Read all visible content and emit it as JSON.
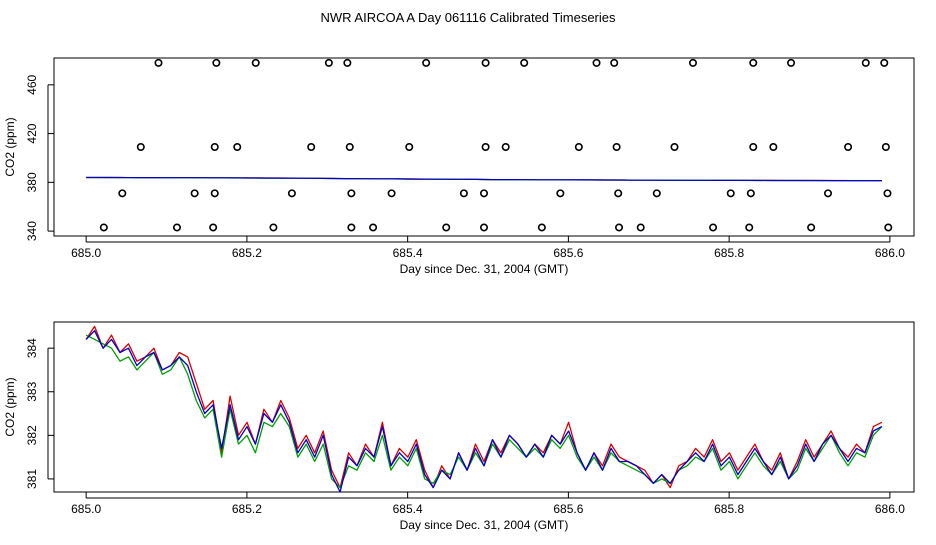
{
  "page_title": "NWR AIRCOA A  Day 061116  Calibrated Timeseries",
  "chart_data": [
    {
      "type": "scatter",
      "title": "",
      "xlabel": "Day since Dec. 31, 2004 (GMT)",
      "ylabel": "CO2 (ppm)",
      "xlim": [
        684.96,
        686.03
      ],
      "ylim": [
        336,
        482
      ],
      "x_ticks": [
        685.0,
        685.2,
        685.4,
        685.6,
        685.8,
        686.0
      ],
      "x_tick_labels": [
        "685.0",
        "685.2",
        "685.4",
        "685.6",
        "685.8",
        "686.0"
      ],
      "y_ticks": [
        340,
        380,
        420,
        460
      ],
      "y_tick_labels": [
        "340",
        "380",
        "420",
        "460"
      ],
      "grid": false,
      "points": [
        {
          "x": 685.09,
          "y": 478
        },
        {
          "x": 685.162,
          "y": 478
        },
        {
          "x": 685.211,
          "y": 478
        },
        {
          "x": 685.302,
          "y": 478
        },
        {
          "x": 685.325,
          "y": 478
        },
        {
          "x": 685.423,
          "y": 478
        },
        {
          "x": 685.497,
          "y": 478
        },
        {
          "x": 685.545,
          "y": 478
        },
        {
          "x": 685.635,
          "y": 478
        },
        {
          "x": 685.657,
          "y": 478
        },
        {
          "x": 685.755,
          "y": 478
        },
        {
          "x": 685.83,
          "y": 478
        },
        {
          "x": 685.877,
          "y": 478
        },
        {
          "x": 685.97,
          "y": 478
        },
        {
          "x": 685.993,
          "y": 478
        },
        {
          "x": 685.068,
          "y": 409
        },
        {
          "x": 685.16,
          "y": 409
        },
        {
          "x": 685.188,
          "y": 409
        },
        {
          "x": 685.28,
          "y": 409
        },
        {
          "x": 685.328,
          "y": 409
        },
        {
          "x": 685.402,
          "y": 409
        },
        {
          "x": 685.497,
          "y": 409
        },
        {
          "x": 685.522,
          "y": 409
        },
        {
          "x": 685.613,
          "y": 409
        },
        {
          "x": 685.66,
          "y": 409
        },
        {
          "x": 685.732,
          "y": 409
        },
        {
          "x": 685.83,
          "y": 409
        },
        {
          "x": 685.855,
          "y": 409
        },
        {
          "x": 685.948,
          "y": 409
        },
        {
          "x": 685.995,
          "y": 409
        },
        {
          "x": 685.045,
          "y": 371
        },
        {
          "x": 685.135,
          "y": 371
        },
        {
          "x": 685.16,
          "y": 371
        },
        {
          "x": 685.256,
          "y": 371
        },
        {
          "x": 685.33,
          "y": 371
        },
        {
          "x": 685.38,
          "y": 371
        },
        {
          "x": 685.47,
          "y": 371
        },
        {
          "x": 685.495,
          "y": 371
        },
        {
          "x": 685.59,
          "y": 371
        },
        {
          "x": 685.662,
          "y": 371
        },
        {
          "x": 685.71,
          "y": 371
        },
        {
          "x": 685.802,
          "y": 371
        },
        {
          "x": 685.827,
          "y": 371
        },
        {
          "x": 685.923,
          "y": 371
        },
        {
          "x": 685.997,
          "y": 371
        },
        {
          "x": 685.022,
          "y": 343
        },
        {
          "x": 685.113,
          "y": 343
        },
        {
          "x": 685.158,
          "y": 343
        },
        {
          "x": 685.233,
          "y": 343
        },
        {
          "x": 685.33,
          "y": 343
        },
        {
          "x": 685.357,
          "y": 343
        },
        {
          "x": 685.448,
          "y": 343
        },
        {
          "x": 685.495,
          "y": 343
        },
        {
          "x": 685.567,
          "y": 343
        },
        {
          "x": 685.663,
          "y": 343
        },
        {
          "x": 685.69,
          "y": 343
        },
        {
          "x": 685.78,
          "y": 343
        },
        {
          "x": 685.825,
          "y": 343
        },
        {
          "x": 685.902,
          "y": 343
        },
        {
          "x": 685.998,
          "y": 343
        }
      ],
      "series": [
        {
          "color": "#dd0000",
          "x_start": 685.0,
          "x_end": 685.99,
          "values": [
            384,
            384,
            384,
            383.9,
            383.9,
            383.8,
            383.9,
            383.8,
            383.8,
            383.7,
            383.7,
            383.6,
            383.6,
            383.5,
            383.4,
            383.3,
            383.1,
            383,
            382.9,
            382.8,
            382.8,
            382.7,
            382.6,
            382.5,
            382.4,
            382.3,
            382.3,
            382.2,
            382.1,
            382.1,
            382,
            382,
            381.9,
            381.9,
            381.8,
            381.8,
            381.8,
            381.7,
            381.7,
            381.6,
            381.6,
            381.6,
            381.6,
            381.5,
            381.5,
            381.5,
            381.5,
            381.4,
            381.4,
            381.4
          ]
        },
        {
          "color": "#00a000",
          "x_start": 685.0,
          "x_end": 685.99,
          "values": [
            384,
            384,
            383.9,
            383.9,
            383.8,
            383.8,
            383.8,
            383.7,
            383.7,
            383.6,
            383.6,
            383.5,
            383.5,
            383.4,
            383.3,
            383.2,
            383.1,
            383,
            382.9,
            382.8,
            382.7,
            382.6,
            382.5,
            382.5,
            382.4,
            382.3,
            382.2,
            382.2,
            382.1,
            382,
            382,
            381.9,
            381.9,
            381.8,
            381.8,
            381.7,
            381.7,
            381.7,
            381.6,
            381.6,
            381.6,
            381.5,
            381.5,
            381.5,
            381.5,
            381.4,
            381.4,
            381.4,
            381.4,
            381.3
          ]
        },
        {
          "color": "#0000cc",
          "x_start": 685.0,
          "x_end": 685.99,
          "values": [
            384,
            384,
            384,
            383.9,
            383.9,
            383.8,
            383.8,
            383.8,
            383.7,
            383.7,
            383.6,
            383.6,
            383.5,
            383.4,
            383.3,
            383.2,
            383.1,
            383,
            382.9,
            382.8,
            382.7,
            382.7,
            382.6,
            382.5,
            382.4,
            382.3,
            382.3,
            382.2,
            382.1,
            382.1,
            382,
            382,
            381.9,
            381.9,
            381.8,
            381.8,
            381.7,
            381.7,
            381.7,
            381.6,
            381.6,
            381.6,
            381.5,
            381.5,
            381.5,
            381.5,
            381.4,
            381.4,
            381.4,
            381.4
          ]
        }
      ]
    },
    {
      "type": "line",
      "title": "",
      "xlabel": "Day since Dec. 31, 2004 (GMT)",
      "ylabel": "CO2 (ppm)",
      "xlim": [
        684.96,
        686.03
      ],
      "ylim": [
        380.7,
        384.6
      ],
      "x_ticks": [
        685.0,
        685.2,
        685.4,
        685.6,
        685.8,
        686.0
      ],
      "x_tick_labels": [
        "685.0",
        "685.2",
        "685.4",
        "685.6",
        "685.8",
        "686.0"
      ],
      "y_ticks": [
        381,
        382,
        383,
        384
      ],
      "y_tick_labels": [
        "381",
        "382",
        "383",
        "384"
      ],
      "grid": false,
      "series": [
        {
          "color": "#dd0000",
          "x_start": 685.0,
          "x_end": 685.99,
          "values": [
            384.2,
            384.5,
            384.0,
            384.3,
            383.9,
            384.1,
            383.7,
            383.8,
            384.0,
            383.5,
            383.6,
            383.9,
            383.8,
            383.2,
            382.6,
            382.8,
            381.6,
            382.9,
            382.0,
            382.3,
            381.8,
            382.6,
            382.3,
            382.8,
            382.4,
            381.7,
            382.0,
            381.6,
            382.1,
            381.2,
            380.8,
            381.6,
            381.3,
            381.8,
            381.5,
            382.3,
            381.3,
            381.7,
            381.5,
            381.9,
            381.2,
            380.8,
            381.3,
            381.0,
            381.6,
            381.2,
            381.8,
            381.4,
            381.9,
            381.6,
            382.0,
            381.8,
            381.5,
            381.8,
            381.6,
            382.0,
            381.8,
            382.3,
            381.6,
            381.2,
            381.6,
            381.3,
            381.8,
            381.5,
            381.4,
            381.3,
            381.2,
            380.9,
            381.1,
            380.8,
            381.3,
            381.4,
            381.7,
            381.5,
            381.9,
            381.4,
            381.6,
            381.2,
            381.5,
            381.8,
            381.4,
            381.2,
            381.6,
            381.0,
            381.4,
            381.9,
            381.5,
            381.8,
            382.1,
            381.7,
            381.5,
            381.8,
            381.6,
            382.2,
            382.3
          ]
        },
        {
          "color": "#00a000",
          "x_start": 685.0,
          "x_end": 685.99,
          "values": [
            384.3,
            384.2,
            384.1,
            384.0,
            383.7,
            383.8,
            383.5,
            383.7,
            383.9,
            383.4,
            383.5,
            383.8,
            383.4,
            382.8,
            382.4,
            382.6,
            381.5,
            382.6,
            381.8,
            382.0,
            381.6,
            382.3,
            382.2,
            382.5,
            382.2,
            381.5,
            381.8,
            381.4,
            381.8,
            381.0,
            380.8,
            381.3,
            381.2,
            381.6,
            381.4,
            382.0,
            381.2,
            381.5,
            381.3,
            381.7,
            381.0,
            380.9,
            381.2,
            381.1,
            381.5,
            381.2,
            381.6,
            381.3,
            381.8,
            381.5,
            381.9,
            381.7,
            381.5,
            381.7,
            381.5,
            381.9,
            381.7,
            382.0,
            381.5,
            381.2,
            381.5,
            381.2,
            381.6,
            381.4,
            381.3,
            381.2,
            381.1,
            380.9,
            381.0,
            380.9,
            381.2,
            381.3,
            381.5,
            381.4,
            381.7,
            381.2,
            381.4,
            381.0,
            381.3,
            381.6,
            381.3,
            381.1,
            381.4,
            381.0,
            381.2,
            381.7,
            381.4,
            381.7,
            382.0,
            381.6,
            381.3,
            381.6,
            381.5,
            382.0,
            382.2
          ]
        },
        {
          "color": "#0000cc",
          "x_start": 685.0,
          "x_end": 685.99,
          "values": [
            384.2,
            384.4,
            384.0,
            384.2,
            383.9,
            384.0,
            383.6,
            383.8,
            383.9,
            383.5,
            383.6,
            383.8,
            383.6,
            383.0,
            382.5,
            382.7,
            381.7,
            382.7,
            381.9,
            382.2,
            381.8,
            382.5,
            382.3,
            382.7,
            382.3,
            381.6,
            381.9,
            381.5,
            382.0,
            381.1,
            380.7,
            381.5,
            381.3,
            381.7,
            381.5,
            382.2,
            381.3,
            381.6,
            381.4,
            381.8,
            381.1,
            380.8,
            381.2,
            381.0,
            381.6,
            381.2,
            381.7,
            381.3,
            381.9,
            381.5,
            382.0,
            381.8,
            381.5,
            381.8,
            381.5,
            382.0,
            381.8,
            382.1,
            381.6,
            381.2,
            381.6,
            381.2,
            381.7,
            381.4,
            381.4,
            381.3,
            381.1,
            380.9,
            381.1,
            380.9,
            381.2,
            381.4,
            381.6,
            381.4,
            381.8,
            381.3,
            381.5,
            381.1,
            381.4,
            381.7,
            381.4,
            381.1,
            381.5,
            381.0,
            381.3,
            381.8,
            381.4,
            381.8,
            382.0,
            381.7,
            381.4,
            381.7,
            381.6,
            382.1,
            382.2
          ]
        }
      ]
    }
  ]
}
